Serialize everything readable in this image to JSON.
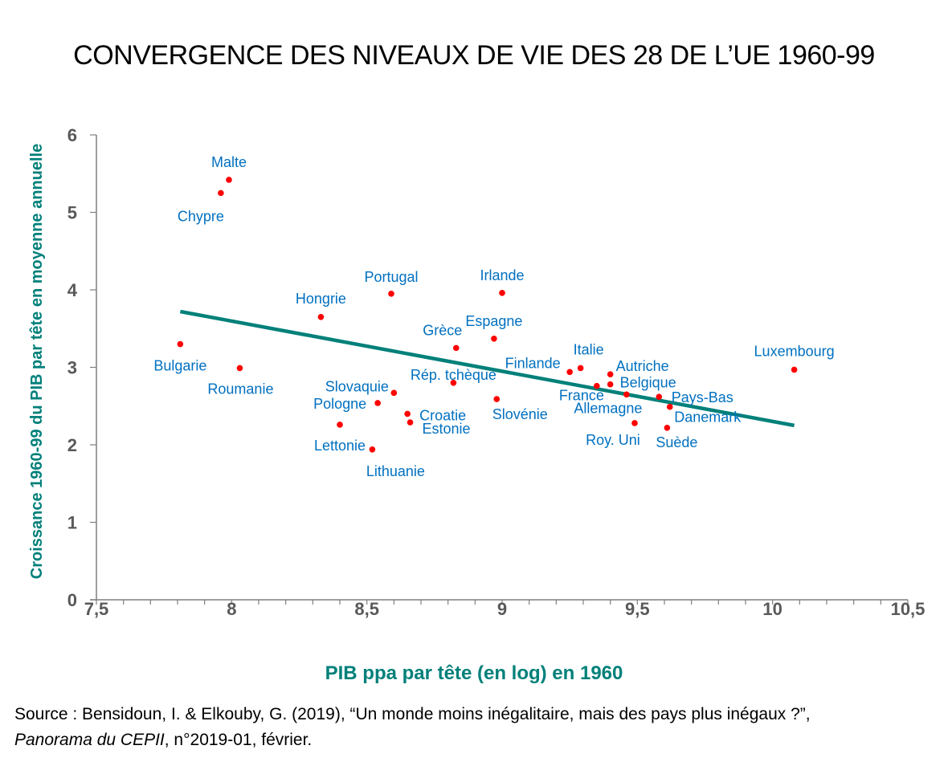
{
  "chart_data": {
    "type": "scatter",
    "title": "CONVERGENCE DES NIVEAUX DE VIE DES 28 DE L’UE 1960-99",
    "xlabel": "PIB ppa par tête (en log) en 1960",
    "ylabel": "Croissance 1960-99 du PIB par tête en moyenne annuelle",
    "xlim": [
      7.5,
      10.5
    ],
    "ylim": [
      0,
      6
    ],
    "xticks": [
      7.5,
      8,
      8.5,
      9,
      9.5,
      10,
      10.5
    ],
    "xtick_labels": [
      "7,5",
      "8",
      "8,5",
      "9",
      "9,5",
      "10",
      "10,5"
    ],
    "x_minor_step": 0.1,
    "yticks": [
      0,
      1,
      2,
      3,
      4,
      5,
      6
    ],
    "ytick_labels": [
      "0",
      "1",
      "2",
      "3",
      "4",
      "5",
      "6"
    ],
    "grid": false,
    "colors": {
      "points": "#ff0000",
      "labels": "#0070c0",
      "trend": "#00807a",
      "axis_title": "#00807a",
      "ticks": "#595959"
    },
    "points": [
      {
        "label": "Malte",
        "x": 7.99,
        "y": 5.42
      },
      {
        "label": "Chypre",
        "x": 7.96,
        "y": 5.25
      },
      {
        "label": "Bulgarie",
        "x": 7.81,
        "y": 3.3
      },
      {
        "label": "Roumanie",
        "x": 8.03,
        "y": 2.99
      },
      {
        "label": "Hongrie",
        "x": 8.33,
        "y": 3.65
      },
      {
        "label": "Portugal",
        "x": 8.59,
        "y": 3.95
      },
      {
        "label": "Irlande",
        "x": 9.0,
        "y": 3.96
      },
      {
        "label": "Grèce",
        "x": 8.83,
        "y": 3.25
      },
      {
        "label": "Espagne",
        "x": 8.97,
        "y": 3.37
      },
      {
        "label": "Rép. tchèque",
        "x": 8.82,
        "y": 2.8
      },
      {
        "label": "Slovaquie",
        "x": 8.6,
        "y": 2.67
      },
      {
        "label": "Pologne",
        "x": 8.54,
        "y": 2.54
      },
      {
        "label": "Lettonie",
        "x": 8.4,
        "y": 2.26
      },
      {
        "label": "Lithuanie",
        "x": 8.52,
        "y": 1.94
      },
      {
        "label": "Croatie",
        "x": 8.65,
        "y": 2.4
      },
      {
        "label": "Estonie",
        "x": 8.66,
        "y": 2.29
      },
      {
        "label": "Slovénie",
        "x": 8.98,
        "y": 2.59
      },
      {
        "label": "Finlande",
        "x": 9.25,
        "y": 2.94
      },
      {
        "label": "Italie",
        "x": 9.29,
        "y": 2.99
      },
      {
        "label": "France",
        "x": 9.35,
        "y": 2.76
      },
      {
        "label": "Autriche",
        "x": 9.4,
        "y": 2.91
      },
      {
        "label": "Belgique",
        "x": 9.4,
        "y": 2.78
      },
      {
        "label": "Allemagne",
        "x": 9.46,
        "y": 2.65
      },
      {
        "label": "Pays-Bas",
        "x": 9.58,
        "y": 2.62
      },
      {
        "label": "Danemark",
        "x": 9.62,
        "y": 2.49
      },
      {
        "label": "Suède",
        "x": 9.61,
        "y": 2.22
      },
      {
        "label": "Roy. Uni",
        "x": 9.49,
        "y": 2.28
      },
      {
        "label": "Luxembourg",
        "x": 10.08,
        "y": 2.97
      }
    ],
    "trendline": {
      "x": [
        7.81,
        10.08
      ],
      "y": [
        3.72,
        2.25
      ]
    }
  },
  "source": {
    "line1": "Source : Bensidoun, I. & Elkouby, G. (2019), “Un monde moins inégalitaire, mais des pays plus inégaux ?”,",
    "publication": "Panorama du CEPII",
    "line2_rest": ", n°2019-01, février."
  }
}
